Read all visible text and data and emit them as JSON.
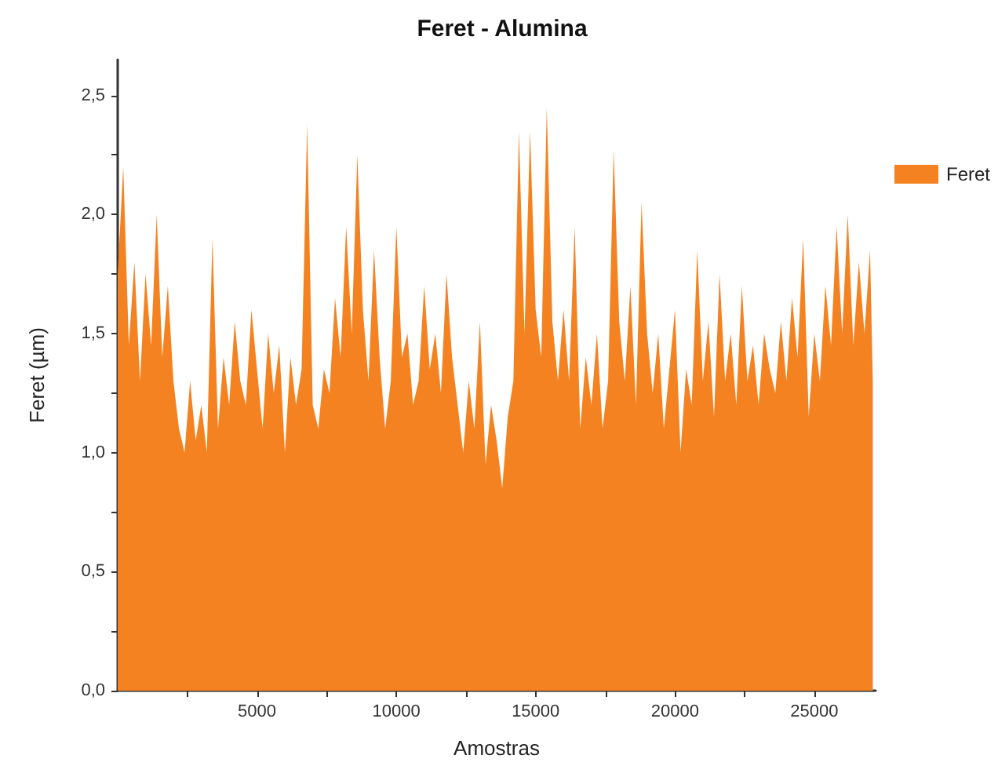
{
  "chart_data": {
    "type": "area",
    "title": "Feret - Alumina",
    "xlabel": "Amostras",
    "ylabel": "Feret (µm)",
    "x": [
      0,
      200,
      400,
      600,
      800,
      1000,
      1200,
      1400,
      1600,
      1800,
      2000,
      2200,
      2400,
      2600,
      2800,
      3000,
      3200,
      3400,
      3600,
      3800,
      4000,
      4200,
      4400,
      4600,
      4800,
      5000,
      5200,
      5400,
      5600,
      5800,
      6000,
      6200,
      6400,
      6600,
      6800,
      7000,
      7200,
      7400,
      7600,
      7800,
      8000,
      8200,
      8400,
      8600,
      8800,
      9000,
      9200,
      9400,
      9600,
      9800,
      10000,
      10200,
      10400,
      10600,
      10800,
      11000,
      11200,
      11400,
      11600,
      11800,
      12000,
      12200,
      12400,
      12600,
      12800,
      13000,
      13200,
      13400,
      13600,
      13800,
      14000,
      14200,
      14400,
      14600,
      14800,
      15000,
      15200,
      15400,
      15600,
      15800,
      16000,
      16200,
      16400,
      16600,
      16800,
      17000,
      17200,
      17400,
      17600,
      17800,
      18000,
      18200,
      18400,
      18600,
      18800,
      19000,
      19200,
      19400,
      19600,
      19800,
      20000,
      20200,
      20400,
      20600,
      20800,
      21000,
      21200,
      21400,
      21600,
      21800,
      22000,
      22200,
      22400,
      22600,
      22800,
      23000,
      23200,
      23400,
      23600,
      23800,
      24000,
      24200,
      24400,
      24600,
      24800,
      25000,
      25200,
      25400,
      25600,
      25800,
      26000,
      26200,
      26400,
      26600,
      26800,
      27000,
      27100
    ],
    "series": [
      {
        "name": "Feret",
        "color": "#f58220",
        "values": [
          1.75,
          2.2,
          1.45,
          1.8,
          1.3,
          1.75,
          1.45,
          2.0,
          1.4,
          1.7,
          1.3,
          1.1,
          1.0,
          1.3,
          1.05,
          1.2,
          1.0,
          1.9,
          1.1,
          1.4,
          1.2,
          1.55,
          1.3,
          1.2,
          1.6,
          1.35,
          1.1,
          1.5,
          1.25,
          1.45,
          1.0,
          1.4,
          1.2,
          1.35,
          2.38,
          1.2,
          1.1,
          1.35,
          1.25,
          1.65,
          1.4,
          1.95,
          1.5,
          2.25,
          1.6,
          1.3,
          1.85,
          1.4,
          1.1,
          1.3,
          1.95,
          1.4,
          1.5,
          1.2,
          1.3,
          1.7,
          1.35,
          1.5,
          1.25,
          1.75,
          1.4,
          1.2,
          1.0,
          1.3,
          1.1,
          1.55,
          0.95,
          1.2,
          1.05,
          0.85,
          1.15,
          1.3,
          2.35,
          1.5,
          2.35,
          1.6,
          1.4,
          2.45,
          1.55,
          1.3,
          1.6,
          1.3,
          1.95,
          1.1,
          1.4,
          1.2,
          1.5,
          1.1,
          1.3,
          2.27,
          1.55,
          1.3,
          1.7,
          1.2,
          2.05,
          1.5,
          1.25,
          1.5,
          1.1,
          1.35,
          1.6,
          1.0,
          1.35,
          1.2,
          1.85,
          1.3,
          1.55,
          1.15,
          1.75,
          1.3,
          1.5,
          1.2,
          1.7,
          1.3,
          1.45,
          1.2,
          1.5,
          1.35,
          1.25,
          1.55,
          1.3,
          1.65,
          1.4,
          1.9,
          1.15,
          1.5,
          1.3,
          1.7,
          1.45,
          1.95,
          1.5,
          2.0,
          1.45,
          1.8,
          1.5,
          1.85,
          1.3
        ]
      }
    ],
    "xlim": [
      0,
      27200
    ],
    "xticks": [
      {
        "value": 2500,
        "label": null
      },
      5000,
      {
        "value": 7500,
        "label": null
      },
      10000,
      {
        "value": 12500,
        "label": null
      },
      15000,
      {
        "value": 17500,
        "label": null
      },
      20000,
      {
        "value": 22500,
        "label": null
      },
      25000
    ],
    "ylim": [
      0,
      2.65
    ],
    "yticks": [
      {
        "value": 0,
        "label": "0,0"
      },
      {
        "value": 0.25,
        "label": null
      },
      {
        "value": 0.5,
        "label": "0,5"
      },
      {
        "value": 0.75,
        "label": null
      },
      {
        "value": 1,
        "label": "1,0"
      },
      {
        "value": 1.25,
        "label": null
      },
      {
        "value": 1.5,
        "label": "1,5"
      },
      {
        "value": 1.75,
        "label": null
      },
      {
        "value": 2,
        "label": "2,0"
      },
      {
        "value": 2.25,
        "label": null
      },
      {
        "value": 2.5,
        "label": "2,5"
      }
    ],
    "grid": false,
    "legend": "top right"
  }
}
